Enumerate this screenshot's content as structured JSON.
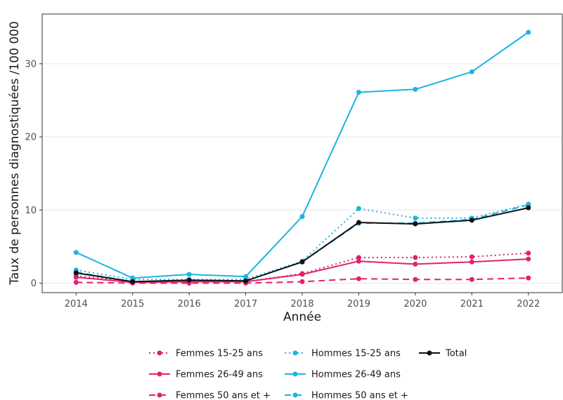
{
  "chart_data": {
    "type": "line",
    "xlabel": "Année",
    "ylabel": "Taux de personnes diagnostiquées /100 000",
    "x": [
      2014,
      2015,
      2016,
      2017,
      2018,
      2019,
      2020,
      2021,
      2022
    ],
    "xlim": [
      2013.4,
      2022.6
    ],
    "ylim": [
      -1.3,
      36.8
    ],
    "yticks": [
      0,
      10,
      20,
      30
    ],
    "grid": true,
    "legend_position": "bottom",
    "series": [
      {
        "name": "Femmes 15-25 ans",
        "color": "#e0236e",
        "dash": "dotted",
        "values": [
          1.0,
          0.2,
          0.2,
          0.2,
          1.3,
          3.5,
          3.5,
          3.6,
          4.1
        ]
      },
      {
        "name": "Femmes 26-49 ans",
        "color": "#e0236e",
        "dash": "solid",
        "values": [
          0.8,
          0.1,
          0.2,
          0.2,
          1.2,
          3.0,
          2.6,
          2.9,
          3.3
        ]
      },
      {
        "name": "Femmes 50 ans et +",
        "color": "#e0236e",
        "dash": "dashed",
        "values": [
          0.1,
          0.0,
          0.0,
          0.0,
          0.2,
          0.6,
          0.5,
          0.5,
          0.7
        ]
      },
      {
        "name": "Hommes 15-25 ans",
        "color": "#1cb4e0",
        "dash": "dotted",
        "values": [
          1.8,
          0.5,
          0.5,
          0.5,
          3.0,
          10.2,
          8.9,
          8.9,
          10.8
        ]
      },
      {
        "name": "Hommes 26-49 ans",
        "color": "#1cb4e0",
        "dash": "solid",
        "values": [
          4.2,
          0.7,
          1.2,
          0.9,
          9.1,
          26.1,
          26.5,
          28.9,
          34.3
        ]
      },
      {
        "name": "Hommes 50 ans et +",
        "color": "#1cb4e0",
        "dash": "dashed",
        "values": [
          1.5,
          0.2,
          0.4,
          0.3,
          2.9,
          8.2,
          8.2,
          8.7,
          10.7
        ]
      },
      {
        "name": "Total",
        "color": "#111111",
        "dash": "solid",
        "values": [
          1.4,
          0.2,
          0.4,
          0.3,
          2.9,
          8.3,
          8.1,
          8.6,
          10.3
        ]
      }
    ]
  }
}
